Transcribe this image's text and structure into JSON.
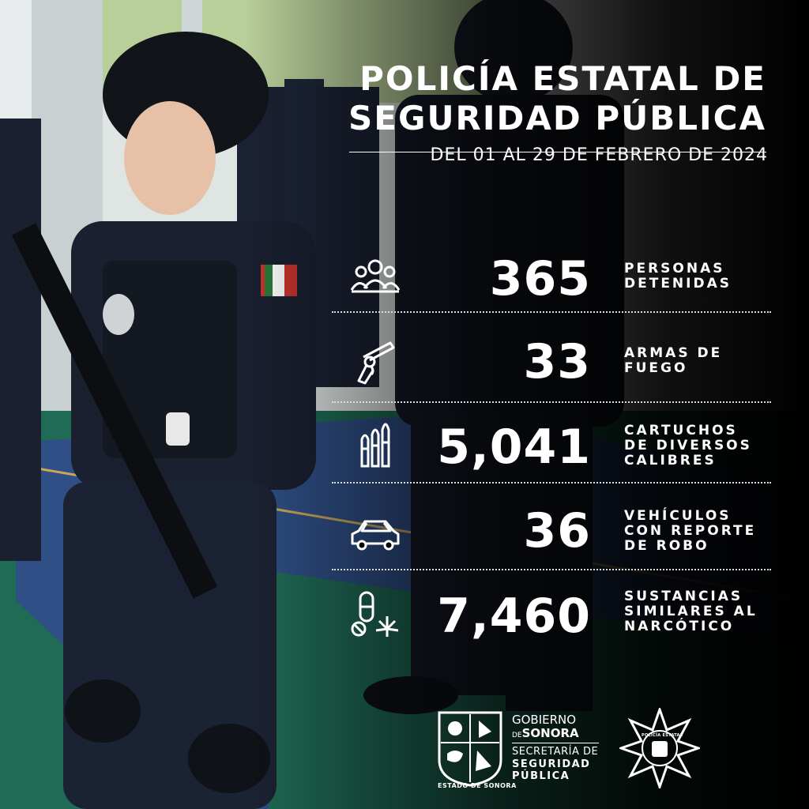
{
  "header": {
    "title_line1": "POLICÍA ESTATAL DE",
    "title_line2": "SEGURIDAD PÚBLICA",
    "date_range": "DEL 01 AL 29 DE FEBRERO DE 2024"
  },
  "stats": [
    {
      "icon": "people-group-icon",
      "value": "365",
      "label_lines": [
        "PERSONAS",
        "DETENIDAS"
      ]
    },
    {
      "icon": "revolver-icon",
      "value": "33",
      "label_lines": [
        "ARMAS DE",
        "FUEGO"
      ]
    },
    {
      "icon": "bullets-icon",
      "value": "5,041",
      "label_lines": [
        "CARTUCHOS",
        "DE DIVERSOS",
        "CALIBRES"
      ]
    },
    {
      "icon": "car-icon",
      "value": "36",
      "label_lines": [
        "VEHÍCULOS",
        "CON REPORTE",
        "DE ROBO"
      ]
    },
    {
      "icon": "pills-cannabis-icon",
      "value": "7,460",
      "label_lines": [
        "SUSTANCIAS",
        "SIMILARES AL",
        "NARCÓTICO"
      ]
    }
  ],
  "footer": {
    "gobierno_line1": "GOBIERNO",
    "gobierno_de": "DE",
    "gobierno_sonora": "SONORA",
    "secretaria_line1": "SECRETARÍA DE",
    "secretaria_line2": "SEGURIDAD",
    "secretaria_line3": "PÚBLICA",
    "shield_caption": "ESTADO DE SONORA",
    "badge_text": "POLICÍA ESTATAL"
  },
  "colors": {
    "text": "#ffffff",
    "uniform_navy": "#1b2233",
    "court_blue": "#2f4f86",
    "court_green": "#1f6b56",
    "background": "#000000"
  }
}
